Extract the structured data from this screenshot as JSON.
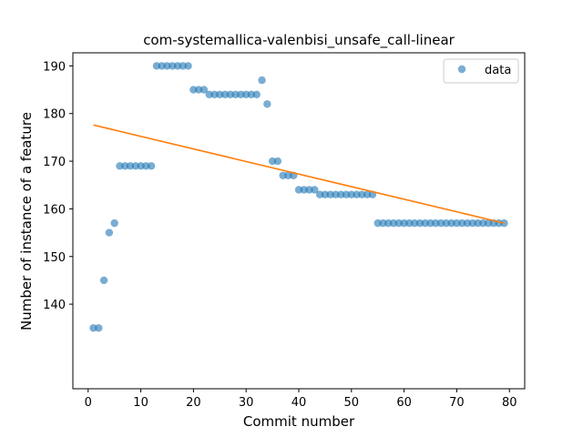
{
  "chart_data": {
    "type": "scatter",
    "title": "com-systemallica-valenbisi_unsafe_call-linear",
    "xlabel": "Commit number",
    "ylabel": "Number of instance of a feature",
    "xlim": [
      -2.9,
      82.9
    ],
    "ylim": [
      122.25,
      192.75
    ],
    "xticks": [
      0,
      10,
      20,
      30,
      40,
      50,
      60,
      70,
      80
    ],
    "yticks": [
      140,
      150,
      160,
      170,
      180,
      190
    ],
    "grid": false,
    "legend_position": "top-right",
    "colors": {
      "points": "#1f77b4",
      "fit": "#ff7f0e"
    },
    "series": [
      {
        "name": "data",
        "kind": "scatter",
        "points": [
          [
            1,
            135
          ],
          [
            2,
            135
          ],
          [
            3,
            145
          ],
          [
            4,
            155
          ],
          [
            5,
            157
          ],
          [
            6,
            169
          ],
          [
            7,
            169
          ],
          [
            8,
            169
          ],
          [
            9,
            169
          ],
          [
            10,
            169
          ],
          [
            11,
            169
          ],
          [
            12,
            169
          ],
          [
            13,
            190
          ],
          [
            14,
            190
          ],
          [
            15,
            190
          ],
          [
            16,
            190
          ],
          [
            17,
            190
          ],
          [
            18,
            190
          ],
          [
            19,
            190
          ],
          [
            20,
            185
          ],
          [
            21,
            185
          ],
          [
            22,
            185
          ],
          [
            23,
            184
          ],
          [
            24,
            184
          ],
          [
            25,
            184
          ],
          [
            26,
            184
          ],
          [
            27,
            184
          ],
          [
            28,
            184
          ],
          [
            29,
            184
          ],
          [
            30,
            184
          ],
          [
            31,
            184
          ],
          [
            32,
            184
          ],
          [
            33,
            187
          ],
          [
            34,
            182
          ],
          [
            35,
            170
          ],
          [
            36,
            170
          ],
          [
            37,
            167
          ],
          [
            38,
            167
          ],
          [
            39,
            167
          ],
          [
            40,
            164
          ],
          [
            41,
            164
          ],
          [
            42,
            164
          ],
          [
            43,
            164
          ],
          [
            44,
            163
          ],
          [
            45,
            163
          ],
          [
            46,
            163
          ],
          [
            47,
            163
          ],
          [
            48,
            163
          ],
          [
            49,
            163
          ],
          [
            50,
            163
          ],
          [
            51,
            163
          ],
          [
            52,
            163
          ],
          [
            53,
            163
          ],
          [
            54,
            163
          ],
          [
            55,
            157
          ],
          [
            56,
            157
          ],
          [
            57,
            157
          ],
          [
            58,
            157
          ],
          [
            59,
            157
          ],
          [
            60,
            157
          ],
          [
            61,
            157
          ],
          [
            62,
            157
          ],
          [
            63,
            157
          ],
          [
            64,
            157
          ],
          [
            65,
            157
          ],
          [
            66,
            157
          ],
          [
            67,
            157
          ],
          [
            68,
            157
          ],
          [
            69,
            157
          ],
          [
            70,
            157
          ],
          [
            71,
            157
          ],
          [
            72,
            157
          ],
          [
            73,
            157
          ],
          [
            74,
            157
          ],
          [
            75,
            157
          ],
          [
            76,
            157
          ],
          [
            77,
            157
          ],
          [
            78,
            157
          ],
          [
            79,
            157
          ]
        ]
      },
      {
        "kind": "line",
        "points": [
          [
            1,
            177.6
          ],
          [
            79,
            157.0
          ]
        ]
      }
    ]
  }
}
